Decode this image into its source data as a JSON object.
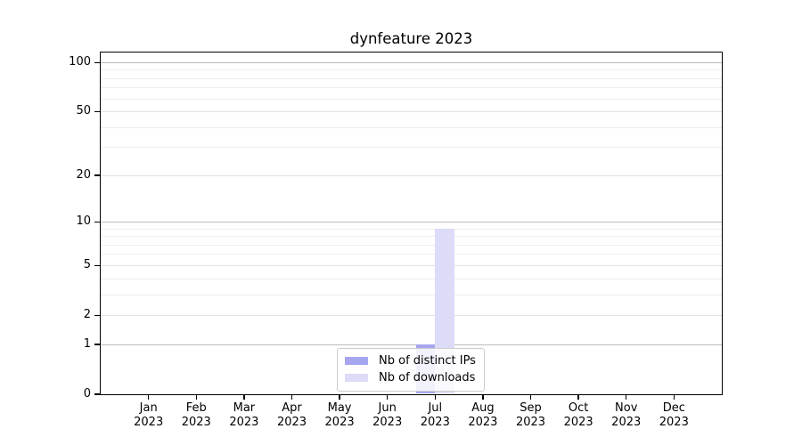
{
  "chart_data": {
    "type": "bar",
    "title": "dynfeature 2023",
    "categories": [
      "Jan",
      "Feb",
      "Mar",
      "Apr",
      "May",
      "Jun",
      "Jul",
      "Aug",
      "Sep",
      "Oct",
      "Nov",
      "Dec"
    ],
    "x_year": "2023",
    "series": [
      {
        "name": "Nb of distinct IPs",
        "color": "#a6a6f0",
        "values": [
          0,
          0,
          0,
          0,
          0,
          0,
          1,
          0,
          0,
          0,
          0,
          0
        ]
      },
      {
        "name": "Nb of downloads",
        "color": "#dcdcf8",
        "values": [
          0,
          0,
          0,
          0,
          0,
          0,
          9,
          0,
          0,
          0,
          0,
          0
        ]
      }
    ],
    "xlabel": "",
    "ylabel": "",
    "yscale": "log1p",
    "ylim": [
      0,
      117
    ],
    "y_tick_values": [
      0,
      1,
      2,
      5,
      10,
      20,
      50,
      100
    ],
    "y_tick_labels": [
      "0",
      "1",
      "2",
      "5",
      "10",
      "20",
      "50",
      "100"
    ],
    "grid": {
      "major_values": [
        1,
        10,
        100
      ],
      "mid_values": [
        2,
        5,
        20,
        50
      ],
      "minor_values": [
        3,
        4,
        6,
        7,
        8,
        9,
        30,
        40,
        60,
        70,
        80,
        90
      ]
    },
    "legend_position": "lower center",
    "colors": {
      "grid_major": "#bdbdbd",
      "grid_mid": "#e2e2e6",
      "grid_minor": "#ededf0",
      "spine": "#000000",
      "background": "#ffffff"
    }
  }
}
